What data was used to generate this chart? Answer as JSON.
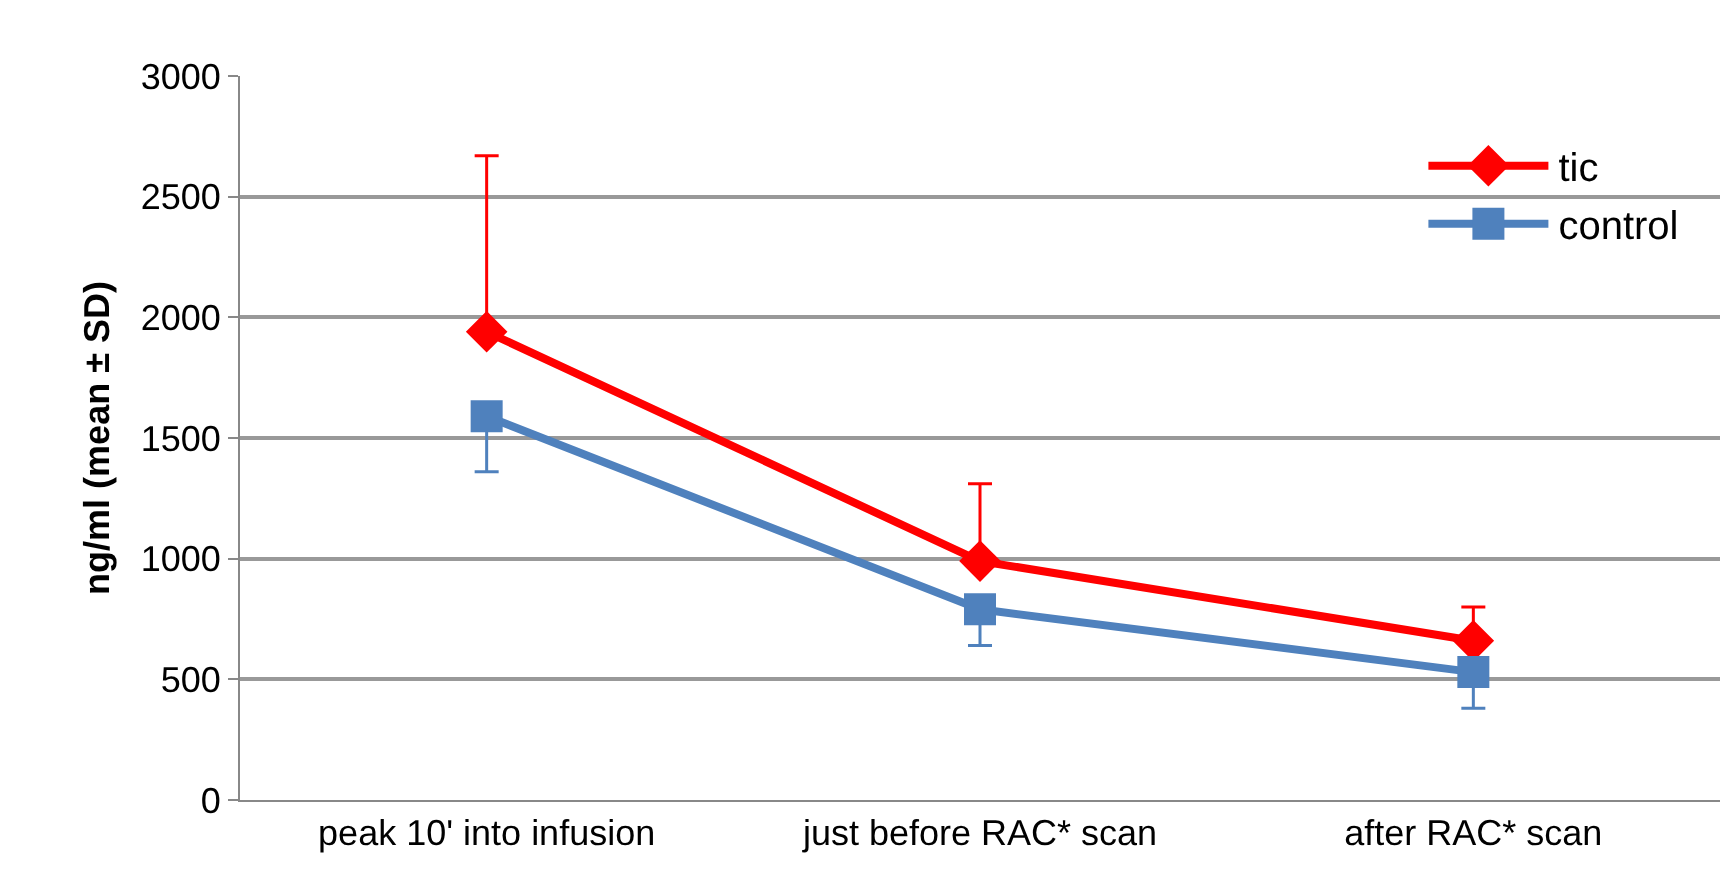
{
  "chart_data": {
    "type": "line",
    "ylabel": "ng/ml (mean ± SD)",
    "categories": [
      "peak 10' into infusion",
      "just before RAC* scan",
      "after RAC* scan"
    ],
    "ylim": [
      0,
      3000
    ],
    "yticks": [
      0,
      500,
      1000,
      1500,
      2000,
      2500,
      3000
    ],
    "grid": "y",
    "legend": "top right",
    "line_style": "solid",
    "series": [
      {
        "name": "tic",
        "color": "#ff0000",
        "marker": "diamond",
        "values": [
          1940,
          990,
          660
        ],
        "errors": [
          [
            1940,
            2670
          ],
          [
            990,
            1310
          ],
          [
            660,
            800
          ]
        ]
      },
      {
        "name": "control",
        "color": "#4f81bd",
        "marker": "square",
        "values": [
          1590,
          790,
          530
        ],
        "errors": [
          [
            1360,
            1590
          ],
          [
            640,
            790
          ],
          [
            380,
            530
          ]
        ]
      }
    ]
  }
}
